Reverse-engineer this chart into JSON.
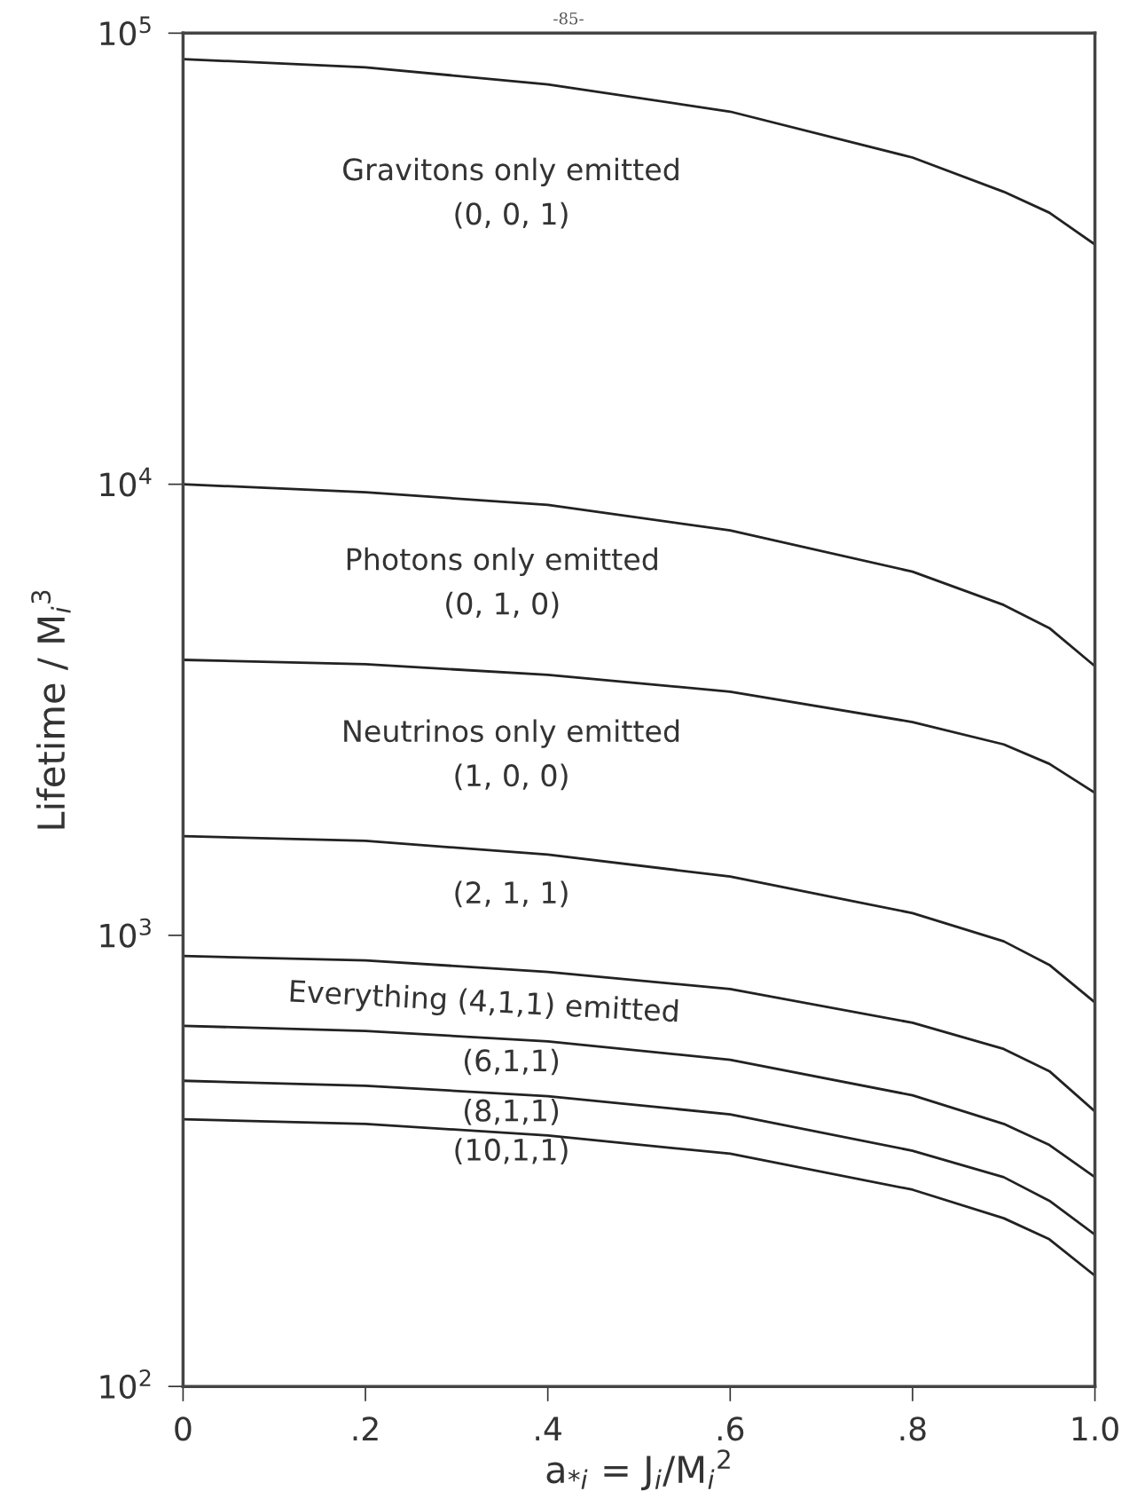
{
  "chart_data": {
    "type": "line",
    "xlabel": "a$_{*i}$ = J$_{i}$/M$_{i}$$^{2}$",
    "ylabel": "Lifetime / M$_{i}$$^{3}$",
    "x": [
      0,
      0.2,
      0.4,
      0.6,
      0.8,
      0.9,
      0.95,
      1.0
    ],
    "series": [
      {
        "color": "#222222",
        "values": [
          87600,
          84000,
          77000,
          67000,
          53000,
          44500,
          40000,
          34000
        ]
      },
      {
        "color": "#222222",
        "values": [
          10000,
          9600,
          9000,
          7900,
          6400,
          5400,
          4800,
          3950
        ]
      },
      {
        "color": "#222222",
        "values": [
          4080,
          3990,
          3780,
          3470,
          2970,
          2650,
          2400,
          2070
        ]
      },
      {
        "color": "#222222",
        "values": [
          1660,
          1620,
          1510,
          1350,
          1120,
          970,
          860,
          710
        ]
      },
      {
        "color": "#222222",
        "values": [
          900,
          880,
          830,
          760,
          640,
          560,
          500,
          407
        ]
      },
      {
        "color": "#222222",
        "values": [
          630,
          614,
          582,
          530,
          442,
          382,
          343,
          291
        ]
      },
      {
        "color": "#222222",
        "values": [
          476,
          464,
          440,
          401,
          333,
          291,
          258,
          217
        ]
      },
      {
        "color": "#222222",
        "values": [
          391,
          382,
          360,
          328,
          273,
          236,
          212,
          176
        ]
      }
    ],
    "log": "y",
    "xlim": [
      0,
      1.0
    ],
    "ylim": [
      100,
      100000
    ],
    "xticks": [
      {
        "value": 0,
        "label": "0"
      },
      {
        "value": 0.2,
        "label": ".2"
      },
      {
        "value": 0.4,
        "label": ".4"
      },
      {
        "value": 0.6,
        "label": ".6"
      },
      {
        "value": 0.8,
        "label": ".8"
      },
      {
        "value": 1.0,
        "label": "1.0"
      }
    ],
    "yticks": [
      {
        "value": 100,
        "label": "10$^{2}$"
      },
      {
        "value": 1000,
        "label": "10$^{3}$"
      },
      {
        "value": 10000,
        "label": "10$^{4}$"
      },
      {
        "value": 100000,
        "label": "10$^{5}$"
      }
    ],
    "marker": "none",
    "line_style": "solid",
    "grid": false,
    "annotations": [
      "-85-",
      "Gravitons only emitted\n(0, 0, 1)",
      "Photons only emitted\n(0, 1, 0)",
      "Neutrinos only emitted\n(1, 0, 0)",
      "(2, 1, 1)",
      "Everything (4,1,1) emitted",
      "(6,1,1)",
      "(8,1,1)",
      "(10,1,1)"
    ]
  }
}
